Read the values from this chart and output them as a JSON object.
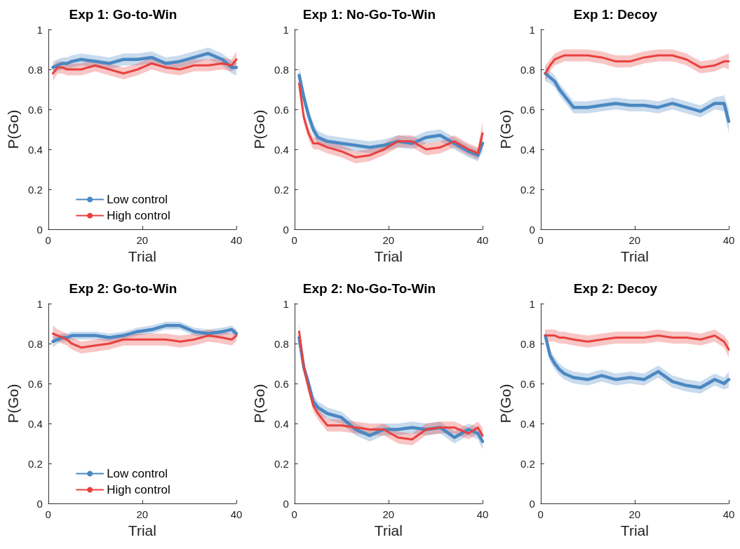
{
  "chart_data": [
    {
      "type": "line",
      "title": "Exp 1: Go-to-Win",
      "xlabel": "Trial",
      "ylabel": "P(Go)",
      "x": [
        1,
        2,
        3,
        4,
        5,
        7,
        10,
        13,
        16,
        19,
        22,
        25,
        28,
        31,
        34,
        37,
        39,
        40
      ],
      "xlim": [
        0,
        40
      ],
      "xticks": [
        0,
        20,
        40
      ],
      "ylim": [
        0,
        1
      ],
      "yticks": [
        0,
        0.2,
        0.4,
        0.6,
        0.8,
        1
      ],
      "legend": "bottom",
      "marker": "none",
      "series": [
        {
          "name": "Low control",
          "color": "#4b88c2",
          "values": [
            0.81,
            0.82,
            0.83,
            0.83,
            0.84,
            0.85,
            0.84,
            0.83,
            0.85,
            0.85,
            0.86,
            0.83,
            0.84,
            0.86,
            0.88,
            0.85,
            0.81,
            0.81
          ],
          "lower": [
            0.78,
            0.79,
            0.8,
            0.8,
            0.81,
            0.82,
            0.81,
            0.8,
            0.82,
            0.82,
            0.83,
            0.8,
            0.81,
            0.83,
            0.85,
            0.82,
            0.78,
            0.77
          ],
          "upper": [
            0.84,
            0.85,
            0.86,
            0.86,
            0.87,
            0.88,
            0.87,
            0.86,
            0.88,
            0.88,
            0.89,
            0.86,
            0.87,
            0.89,
            0.91,
            0.88,
            0.84,
            0.84
          ]
        },
        {
          "name": "High control",
          "color": "#e8413f",
          "values": [
            0.78,
            0.81,
            0.81,
            0.8,
            0.8,
            0.8,
            0.82,
            0.8,
            0.78,
            0.8,
            0.83,
            0.81,
            0.8,
            0.82,
            0.82,
            0.83,
            0.82,
            0.85
          ],
          "lower": [
            0.74,
            0.78,
            0.78,
            0.77,
            0.77,
            0.77,
            0.79,
            0.77,
            0.75,
            0.77,
            0.8,
            0.78,
            0.77,
            0.79,
            0.79,
            0.8,
            0.79,
            0.81
          ],
          "upper": [
            0.82,
            0.84,
            0.84,
            0.83,
            0.83,
            0.83,
            0.85,
            0.83,
            0.81,
            0.83,
            0.86,
            0.84,
            0.83,
            0.85,
            0.85,
            0.86,
            0.85,
            0.89
          ]
        }
      ]
    },
    {
      "type": "line",
      "title": "Exp 1: No-Go-To-Win",
      "xlabel": "Trial",
      "ylabel": "P(Go)",
      "x": [
        1,
        2,
        3,
        4,
        5,
        7,
        10,
        13,
        16,
        19,
        22,
        25,
        28,
        31,
        34,
        37,
        39,
        40
      ],
      "xlim": [
        0,
        40
      ],
      "xticks": [
        0,
        20,
        40
      ],
      "ylim": [
        0,
        1
      ],
      "yticks": [
        0,
        0.2,
        0.4,
        0.6,
        0.8,
        1
      ],
      "marker": "none",
      "series": [
        {
          "color": "#4b88c2",
          "values": [
            0.77,
            0.66,
            0.57,
            0.5,
            0.46,
            0.44,
            0.43,
            0.42,
            0.41,
            0.42,
            0.44,
            0.43,
            0.46,
            0.47,
            0.43,
            0.39,
            0.37,
            0.43
          ],
          "lower": [
            0.72,
            0.62,
            0.54,
            0.47,
            0.43,
            0.41,
            0.4,
            0.39,
            0.38,
            0.39,
            0.41,
            0.4,
            0.43,
            0.44,
            0.4,
            0.36,
            0.34,
            0.39
          ],
          "upper": [
            0.82,
            0.7,
            0.6,
            0.53,
            0.49,
            0.47,
            0.46,
            0.45,
            0.44,
            0.45,
            0.47,
            0.46,
            0.49,
            0.5,
            0.46,
            0.42,
            0.4,
            0.47
          ]
        },
        {
          "color": "#e8413f",
          "values": [
            0.73,
            0.56,
            0.48,
            0.43,
            0.43,
            0.41,
            0.39,
            0.36,
            0.37,
            0.4,
            0.44,
            0.44,
            0.4,
            0.41,
            0.44,
            0.4,
            0.38,
            0.48
          ],
          "lower": [
            0.69,
            0.53,
            0.45,
            0.4,
            0.4,
            0.38,
            0.36,
            0.33,
            0.34,
            0.37,
            0.41,
            0.41,
            0.37,
            0.38,
            0.41,
            0.37,
            0.35,
            0.42
          ],
          "upper": [
            0.77,
            0.59,
            0.51,
            0.46,
            0.46,
            0.44,
            0.42,
            0.39,
            0.4,
            0.43,
            0.47,
            0.47,
            0.43,
            0.44,
            0.47,
            0.43,
            0.41,
            0.54
          ]
        }
      ]
    },
    {
      "type": "line",
      "title": "Exp 1: Decoy",
      "xlabel": "Trial",
      "ylabel": "P(Go)",
      "x": [
        1,
        2,
        3,
        4,
        5,
        7,
        10,
        13,
        16,
        19,
        22,
        25,
        28,
        31,
        34,
        37,
        39,
        40
      ],
      "xlim": [
        0,
        40
      ],
      "xticks": [
        0,
        20,
        40
      ],
      "ylim": [
        0,
        1
      ],
      "yticks": [
        0,
        0.2,
        0.4,
        0.6,
        0.8,
        1
      ],
      "marker": "none",
      "series": [
        {
          "color": "#4b88c2",
          "values": [
            0.78,
            0.76,
            0.74,
            0.7,
            0.67,
            0.61,
            0.61,
            0.62,
            0.63,
            0.62,
            0.62,
            0.61,
            0.63,
            0.61,
            0.59,
            0.63,
            0.63,
            0.54
          ],
          "lower": [
            0.74,
            0.73,
            0.71,
            0.67,
            0.64,
            0.58,
            0.58,
            0.59,
            0.6,
            0.59,
            0.59,
            0.58,
            0.6,
            0.58,
            0.56,
            0.6,
            0.59,
            0.48
          ],
          "upper": [
            0.82,
            0.79,
            0.77,
            0.73,
            0.7,
            0.64,
            0.64,
            0.65,
            0.66,
            0.65,
            0.65,
            0.64,
            0.66,
            0.64,
            0.62,
            0.66,
            0.67,
            0.6
          ]
        },
        {
          "color": "#e8413f",
          "values": [
            0.78,
            0.82,
            0.85,
            0.86,
            0.87,
            0.87,
            0.87,
            0.86,
            0.84,
            0.84,
            0.86,
            0.87,
            0.87,
            0.85,
            0.81,
            0.82,
            0.84,
            0.84
          ],
          "lower": [
            0.74,
            0.79,
            0.82,
            0.83,
            0.84,
            0.84,
            0.84,
            0.83,
            0.81,
            0.81,
            0.83,
            0.84,
            0.84,
            0.82,
            0.78,
            0.79,
            0.81,
            0.8
          ],
          "upper": [
            0.82,
            0.85,
            0.88,
            0.89,
            0.9,
            0.9,
            0.9,
            0.89,
            0.87,
            0.87,
            0.89,
            0.9,
            0.9,
            0.88,
            0.84,
            0.85,
            0.87,
            0.88
          ]
        }
      ]
    },
    {
      "type": "line",
      "title": "Exp 2: Go-to-Win",
      "xlabel": "Trial",
      "ylabel": "P(Go)",
      "x": [
        1,
        2,
        3,
        4,
        5,
        7,
        10,
        13,
        16,
        19,
        22,
        25,
        28,
        31,
        34,
        37,
        39,
        40
      ],
      "xlim": [
        0,
        40
      ],
      "xticks": [
        0,
        20,
        40
      ],
      "ylim": [
        0,
        1
      ],
      "yticks": [
        0,
        0.2,
        0.4,
        0.6,
        0.8,
        1
      ],
      "legend": "bottom",
      "marker": "none",
      "series": [
        {
          "name": "Low control",
          "color": "#4b88c2",
          "values": [
            0.81,
            0.82,
            0.83,
            0.83,
            0.84,
            0.84,
            0.84,
            0.83,
            0.84,
            0.86,
            0.87,
            0.89,
            0.89,
            0.86,
            0.85,
            0.86,
            0.87,
            0.85
          ],
          "lower": [
            0.78,
            0.8,
            0.81,
            0.81,
            0.82,
            0.82,
            0.82,
            0.81,
            0.82,
            0.84,
            0.85,
            0.87,
            0.87,
            0.84,
            0.83,
            0.84,
            0.85,
            0.83
          ],
          "upper": [
            0.84,
            0.84,
            0.85,
            0.85,
            0.86,
            0.86,
            0.86,
            0.85,
            0.86,
            0.88,
            0.89,
            0.91,
            0.91,
            0.88,
            0.87,
            0.88,
            0.89,
            0.87
          ]
        },
        {
          "name": "High control",
          "color": "#e8413f",
          "values": [
            0.85,
            0.84,
            0.83,
            0.82,
            0.8,
            0.78,
            0.79,
            0.8,
            0.82,
            0.82,
            0.82,
            0.82,
            0.81,
            0.82,
            0.84,
            0.83,
            0.82,
            0.84
          ],
          "lower": [
            0.81,
            0.81,
            0.8,
            0.79,
            0.77,
            0.75,
            0.76,
            0.77,
            0.79,
            0.79,
            0.79,
            0.79,
            0.78,
            0.79,
            0.81,
            0.8,
            0.79,
            0.81
          ],
          "upper": [
            0.89,
            0.87,
            0.86,
            0.85,
            0.83,
            0.81,
            0.82,
            0.83,
            0.85,
            0.85,
            0.85,
            0.85,
            0.84,
            0.85,
            0.87,
            0.86,
            0.85,
            0.87
          ]
        }
      ]
    },
    {
      "type": "line",
      "title": "Exp 2: No-Go-To-Win",
      "xlabel": "Trial",
      "ylabel": "P(Go)",
      "x": [
        1,
        2,
        3,
        4,
        5,
        7,
        10,
        13,
        16,
        19,
        22,
        25,
        28,
        31,
        34,
        37,
        39,
        40
      ],
      "xlim": [
        0,
        40
      ],
      "xticks": [
        0,
        20,
        40
      ],
      "ylim": [
        0,
        1
      ],
      "yticks": [
        0,
        0.2,
        0.4,
        0.6,
        0.8,
        1
      ],
      "marker": "none",
      "series": [
        {
          "color": "#4b88c2",
          "values": [
            0.83,
            0.68,
            0.6,
            0.51,
            0.48,
            0.45,
            0.43,
            0.37,
            0.34,
            0.37,
            0.37,
            0.38,
            0.37,
            0.38,
            0.33,
            0.37,
            0.35,
            0.31
          ],
          "lower": [
            0.79,
            0.65,
            0.57,
            0.48,
            0.45,
            0.42,
            0.4,
            0.34,
            0.31,
            0.34,
            0.34,
            0.35,
            0.34,
            0.35,
            0.3,
            0.34,
            0.32,
            0.27
          ],
          "upper": [
            0.87,
            0.71,
            0.63,
            0.54,
            0.51,
            0.48,
            0.46,
            0.4,
            0.37,
            0.4,
            0.4,
            0.41,
            0.4,
            0.41,
            0.36,
            0.4,
            0.38,
            0.35
          ]
        },
        {
          "color": "#e8413f",
          "values": [
            0.86,
            0.68,
            0.58,
            0.49,
            0.45,
            0.39,
            0.39,
            0.38,
            0.37,
            0.37,
            0.33,
            0.32,
            0.37,
            0.38,
            0.38,
            0.35,
            0.38,
            0.34
          ],
          "lower": [
            0.82,
            0.65,
            0.55,
            0.46,
            0.42,
            0.36,
            0.36,
            0.35,
            0.34,
            0.34,
            0.3,
            0.29,
            0.34,
            0.35,
            0.35,
            0.32,
            0.35,
            0.3
          ],
          "upper": [
            0.9,
            0.71,
            0.61,
            0.52,
            0.48,
            0.42,
            0.42,
            0.41,
            0.4,
            0.4,
            0.36,
            0.35,
            0.4,
            0.41,
            0.41,
            0.38,
            0.41,
            0.38
          ]
        }
      ]
    },
    {
      "type": "line",
      "title": "Exp 2: Decoy",
      "xlabel": "Trial",
      "ylabel": "P(Go)",
      "x": [
        1,
        2,
        3,
        4,
        5,
        7,
        10,
        13,
        16,
        19,
        22,
        25,
        28,
        31,
        34,
        37,
        39,
        40
      ],
      "xlim": [
        0,
        40
      ],
      "xticks": [
        0,
        20,
        40
      ],
      "ylim": [
        0,
        1
      ],
      "yticks": [
        0,
        0.2,
        0.4,
        0.6,
        0.8,
        1
      ],
      "marker": "none",
      "series": [
        {
          "color": "#4b88c2",
          "values": [
            0.84,
            0.74,
            0.7,
            0.67,
            0.65,
            0.63,
            0.62,
            0.64,
            0.62,
            0.63,
            0.62,
            0.66,
            0.61,
            0.59,
            0.58,
            0.62,
            0.6,
            0.62
          ],
          "lower": [
            0.81,
            0.71,
            0.67,
            0.64,
            0.62,
            0.6,
            0.59,
            0.61,
            0.59,
            0.6,
            0.59,
            0.63,
            0.58,
            0.56,
            0.55,
            0.59,
            0.57,
            0.58
          ],
          "upper": [
            0.87,
            0.77,
            0.73,
            0.7,
            0.68,
            0.66,
            0.65,
            0.67,
            0.65,
            0.66,
            0.65,
            0.69,
            0.64,
            0.62,
            0.61,
            0.65,
            0.63,
            0.66
          ]
        },
        {
          "color": "#e8413f",
          "values": [
            0.84,
            0.84,
            0.84,
            0.83,
            0.83,
            0.82,
            0.81,
            0.82,
            0.83,
            0.83,
            0.83,
            0.84,
            0.83,
            0.83,
            0.82,
            0.84,
            0.81,
            0.77
          ],
          "lower": [
            0.81,
            0.81,
            0.81,
            0.8,
            0.8,
            0.79,
            0.78,
            0.79,
            0.8,
            0.8,
            0.8,
            0.81,
            0.8,
            0.8,
            0.79,
            0.81,
            0.78,
            0.73
          ],
          "upper": [
            0.87,
            0.87,
            0.87,
            0.86,
            0.86,
            0.85,
            0.84,
            0.85,
            0.86,
            0.86,
            0.86,
            0.87,
            0.86,
            0.86,
            0.85,
            0.87,
            0.84,
            0.81
          ]
        }
      ]
    }
  ]
}
